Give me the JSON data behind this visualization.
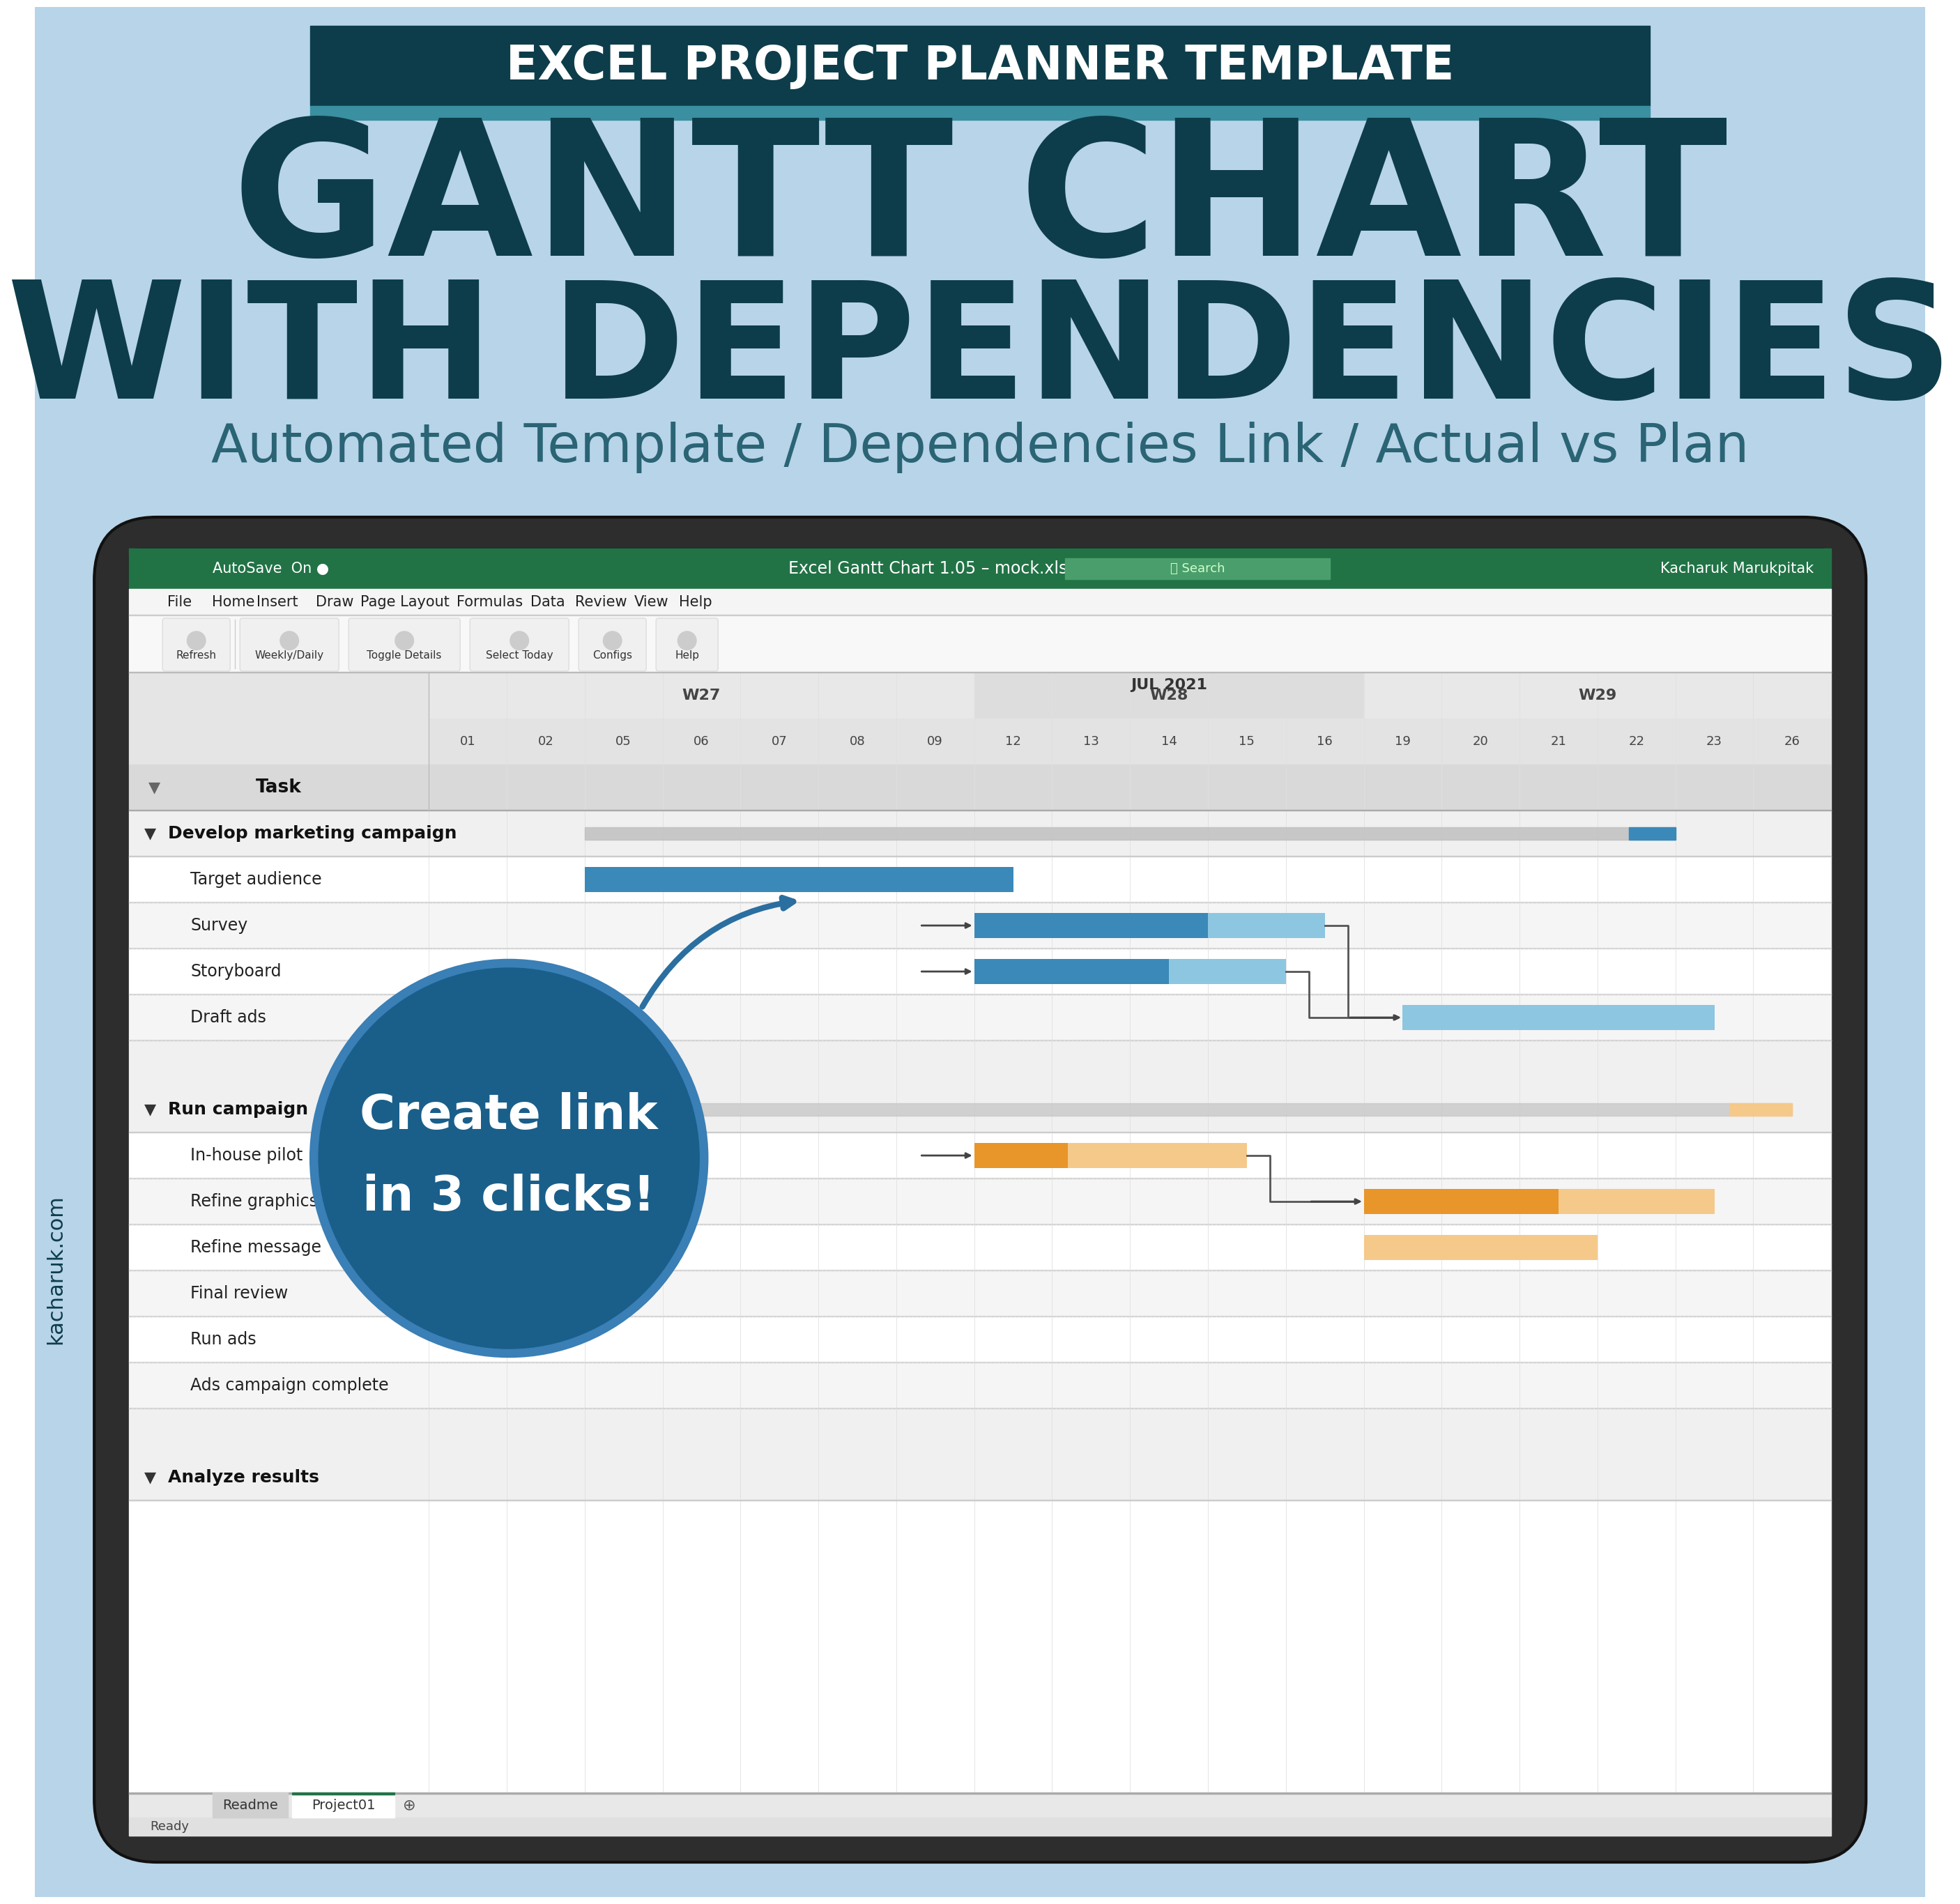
{
  "bg_color": "#b8d4e8",
  "header_bg": "#0d3d4a",
  "header_accent": "#3a8fa0",
  "header_text": "EXCEL PROJECT PLANNER TEMPLATE",
  "title_line1": "GANTT CHART",
  "title_line2": "WITH DEPENDENCIES",
  "subtitle": "Automated Template / Dependencies Link / Actual vs Plan",
  "title_color": "#0d3d4a",
  "subtitle_color": "#2a6475",
  "laptop_frame_color": "#2d2d2d",
  "excel_green": "#217346",
  "task_header_text": "Task",
  "tasks_group1_header": "Develop marketing campaign",
  "tasks_group1": [
    "Target audience",
    "Survey",
    "Storyboard",
    "Draft ads"
  ],
  "tasks_group2_header": "Run campaign",
  "tasks_group2": [
    "In-house pilot",
    "Refine graphics",
    "Refine message",
    "Final review",
    "Run ads",
    "Ads campaign complete"
  ],
  "tasks_group3_header": "Analyze results",
  "week_headers": [
    "W27",
    "W28",
    "W29"
  ],
  "date_header": "JUL 2021",
  "days": [
    "01",
    "02",
    "05",
    "06",
    "07",
    "08",
    "09",
    "12",
    "13",
    "14",
    "15",
    "16",
    "19",
    "20",
    "21",
    "22",
    "23",
    "26"
  ],
  "blue_bar_color": "#3a89b8",
  "blue_bar_light": "#8dc6e0",
  "orange_bar_color": "#e8952a",
  "orange_bar_light": "#f5c98a",
  "circle_bg": "#1a5f8a",
  "circle_text_line1": "Create link",
  "circle_text_line2": "in 3 clicks!",
  "circle_text_color": "#ffffff",
  "arrow_color": "#2a6fa0",
  "website_text": "kacharuk.com",
  "titlebar_autosave": "AutoSave  On ●",
  "titlebar_center": "Excel Gantt Chart 1.05 – mock.xlsm – Saved  ▾",
  "titlebar_right": "Kacharuk Marukpitak",
  "menu_items": [
    "File",
    "Home",
    "Insert",
    "Draw",
    "Page Layout",
    "Formulas",
    "Data",
    "Review",
    "View",
    "Help"
  ],
  "ribbon_buttons": [
    "Refresh",
    "Weekly/Daily",
    "Toggle Details",
    "Select Today",
    "Configs",
    "Help"
  ]
}
